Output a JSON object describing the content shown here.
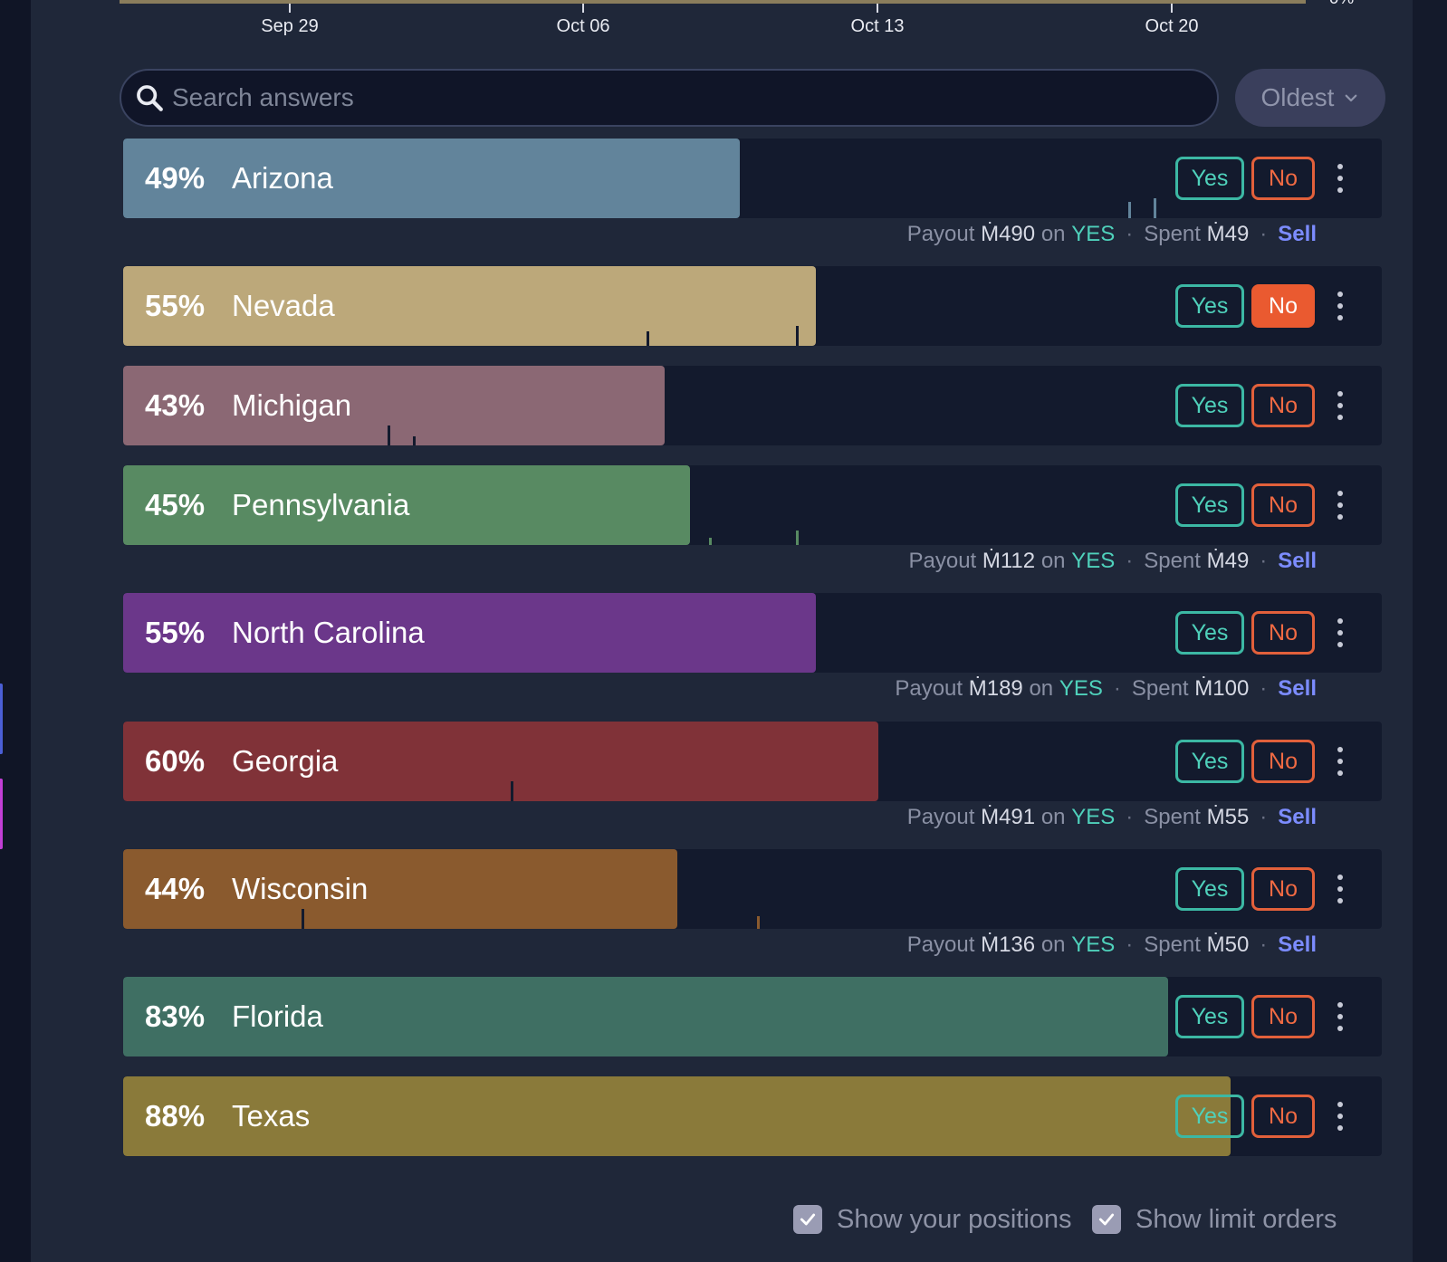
{
  "axis": {
    "ticks": [
      "Sep 29",
      "Oct 06",
      "Oct 13",
      "Oct 20"
    ],
    "zero_label": "0%"
  },
  "search": {
    "placeholder": "Search answers",
    "value": ""
  },
  "sort": {
    "label": "Oldest"
  },
  "buttons": {
    "yes": "Yes",
    "no": "No"
  },
  "payout_text": {
    "payout": "Payout",
    "on": "on",
    "spent": "Spent",
    "sell": "Sell"
  },
  "answers": [
    {
      "pct_value": 49,
      "pct": "49%",
      "name": "Arizona",
      "color": "#62849b",
      "no_active": false,
      "position": {
        "payout": "Ṁ490",
        "side": "YES",
        "spent": "Ṁ49"
      }
    },
    {
      "pct_value": 55,
      "pct": "55%",
      "name": "Nevada",
      "color": "#bca87a",
      "no_active": true
    },
    {
      "pct_value": 43,
      "pct": "43%",
      "name": "Michigan",
      "color": "#8b6874",
      "no_active": false
    },
    {
      "pct_value": 45,
      "pct": "45%",
      "name": "Pennsylvania",
      "color": "#588a62",
      "no_active": false,
      "position": {
        "payout": "Ṁ112",
        "side": "YES",
        "spent": "Ṁ49"
      }
    },
    {
      "pct_value": 55,
      "pct": "55%",
      "name": "North Carolina",
      "color": "#6b378a",
      "no_active": false,
      "position": {
        "payout": "Ṁ189",
        "side": "YES",
        "spent": "Ṁ100"
      }
    },
    {
      "pct_value": 60,
      "pct": "60%",
      "name": "Georgia",
      "color": "#803238",
      "no_active": false,
      "position": {
        "payout": "Ṁ491",
        "side": "YES",
        "spent": "Ṁ55"
      }
    },
    {
      "pct_value": 44,
      "pct": "44%",
      "name": "Wisconsin",
      "color": "#8a5a2e",
      "no_active": false,
      "position": {
        "payout": "Ṁ136",
        "side": "YES",
        "spent": "Ṁ50"
      }
    },
    {
      "pct_value": 83,
      "pct": "83%",
      "name": "Florida",
      "color": "#3f6f63",
      "no_active": false
    },
    {
      "pct_value": 88,
      "pct": "88%",
      "name": "Texas",
      "color": "#8a7a3a",
      "no_active": false
    }
  ],
  "footer": {
    "show_positions": {
      "label": "Show your positions",
      "checked": true
    },
    "show_limit_orders": {
      "label": "Show limit orders",
      "checked": true
    }
  },
  "icons": {
    "search": "search-icon",
    "sort": "chevron-down-icon",
    "more": "more-vertical-icon",
    "check": "check-icon"
  }
}
